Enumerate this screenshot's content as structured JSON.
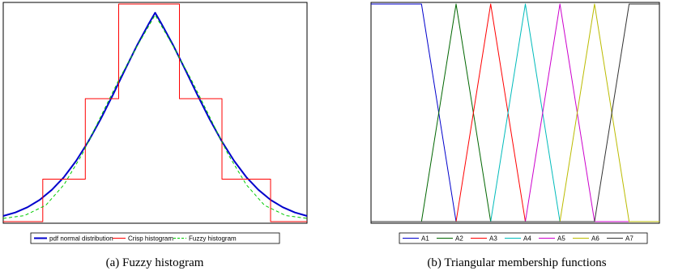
{
  "chart_data": [
    {
      "type": "line",
      "caption": "(a)  Fuzzy histogram",
      "xlim": [
        0,
        100
      ],
      "ylim": [
        0,
        1
      ],
      "grid": false,
      "legend_placement": "bottom",
      "series": [
        {
          "name": "pdf normal distribution",
          "color": "#0000cc",
          "style": "solid-thick",
          "x": [
            0,
            4,
            8,
            12,
            16,
            20,
            24,
            28,
            32,
            36,
            40,
            44,
            48,
            50,
            52,
            56,
            60,
            64,
            68,
            72,
            76,
            80,
            84,
            88,
            92,
            96,
            100
          ],
          "y": [
            0.026,
            0.042,
            0.066,
            0.1,
            0.146,
            0.205,
            0.279,
            0.368,
            0.469,
            0.58,
            0.696,
            0.809,
            0.912,
            0.96,
            0.912,
            0.809,
            0.696,
            0.58,
            0.469,
            0.368,
            0.279,
            0.205,
            0.146,
            0.1,
            0.066,
            0.042,
            0.026
          ]
        },
        {
          "name": "Crisp histogram",
          "color": "#ff0000",
          "style": "step",
          "x": [
            0,
            13,
            13,
            27,
            27,
            38,
            38,
            58,
            58,
            72,
            72,
            88,
            88,
            100
          ],
          "y": [
            0.0,
            0.0,
            0.195,
            0.195,
            0.565,
            0.565,
            1.0,
            1.0,
            0.565,
            0.565,
            0.195,
            0.195,
            0.0,
            0.0
          ]
        },
        {
          "name": "Fuzzy histogram",
          "color": "#00cc00",
          "style": "dashed",
          "x": [
            0,
            7,
            14,
            20,
            26,
            32,
            38,
            44,
            50,
            56,
            62,
            68,
            74,
            80,
            86,
            93,
            100
          ],
          "y": [
            0.015,
            0.028,
            0.075,
            0.17,
            0.31,
            0.48,
            0.65,
            0.805,
            0.95,
            0.805,
            0.65,
            0.48,
            0.31,
            0.17,
            0.075,
            0.028,
            0.015
          ]
        }
      ]
    },
    {
      "type": "line",
      "caption": "(b)  Triangular membership functions",
      "xlim": [
        0,
        100
      ],
      "ylim": [
        0,
        1
      ],
      "grid": false,
      "legend_placement": "bottom",
      "series": [
        {
          "name": "A1",
          "color": "#0000cc",
          "x": [
            0,
            10,
            17.5,
            29.5,
            100
          ],
          "y": [
            1,
            1,
            1,
            0,
            0
          ]
        },
        {
          "name": "A2",
          "color": "#006600",
          "x": [
            0,
            17.5,
            29.5,
            41.5,
            100
          ],
          "y": [
            0,
            0,
            1,
            0,
            0
          ]
        },
        {
          "name": "A3",
          "color": "#ff0000",
          "x": [
            0,
            29.5,
            41.5,
            53.5,
            100
          ],
          "y": [
            0,
            0,
            1,
            0,
            0
          ]
        },
        {
          "name": "A4",
          "color": "#00bbbb",
          "x": [
            0,
            41.5,
            53.5,
            65.5,
            100
          ],
          "y": [
            0,
            0,
            1,
            0,
            0
          ]
        },
        {
          "name": "A5",
          "color": "#cc00cc",
          "x": [
            0,
            53.5,
            65.5,
            77.5,
            100
          ],
          "y": [
            0,
            0,
            1,
            0,
            0
          ]
        },
        {
          "name": "A6",
          "color": "#bbbb00",
          "x": [
            0,
            65.5,
            77.5,
            89.5,
            100
          ],
          "y": [
            0,
            0,
            1,
            0,
            0
          ]
        },
        {
          "name": "A7",
          "color": "#333333",
          "x": [
            0,
            77.5,
            89.5,
            100
          ],
          "y": [
            0,
            0,
            1,
            1
          ]
        }
      ]
    }
  ]
}
